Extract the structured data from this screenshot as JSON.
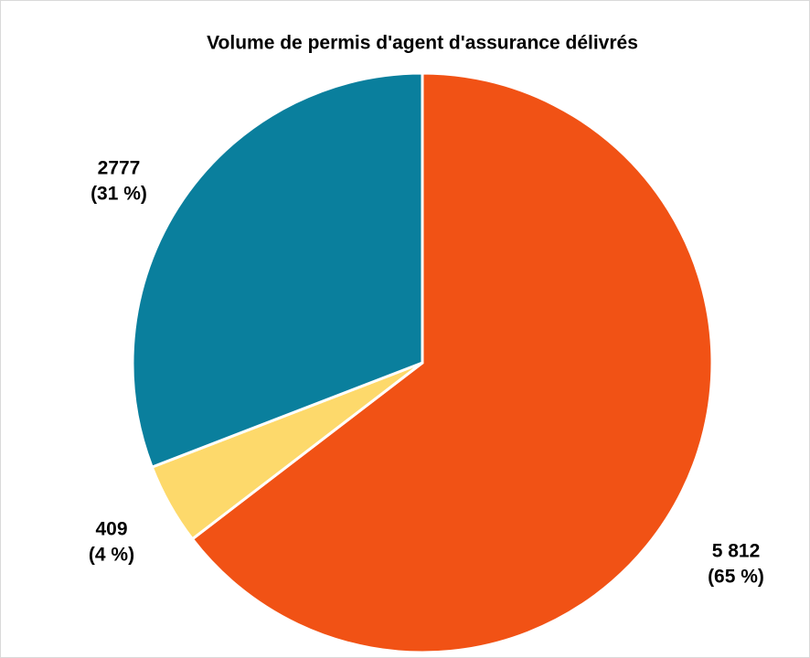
{
  "chart_data": {
    "type": "pie",
    "title": "Volume de permis d'agent d'assurance délivrés",
    "values": [
      5812,
      409,
      2777
    ],
    "value_labels": [
      "5 812",
      "409",
      "2777"
    ],
    "percent_labels": [
      "(65 %)",
      "(4 %)",
      "(31 %)"
    ],
    "colors": [
      "#f15215",
      "#fdd96b",
      "#0a7f9d"
    ]
  }
}
